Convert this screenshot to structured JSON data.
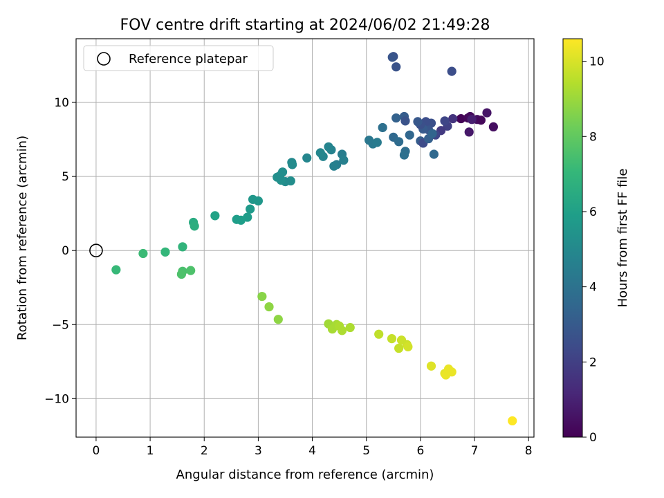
{
  "chart_data": {
    "type": "scatter",
    "title": "FOV centre drift starting at 2024/06/02 21:49:28",
    "xlabel": "Angular distance from reference (arcmin)",
    "ylabel": "Rotation from reference (arcmin)",
    "xlim": [
      -0.37,
      8.1
    ],
    "ylim": [
      -12.6,
      14.3
    ],
    "x_ticks": [
      0,
      1,
      2,
      3,
      4,
      5,
      6,
      7,
      8
    ],
    "y_ticks": [
      -10,
      -5,
      0,
      5,
      10
    ],
    "x_tick_labels": [
      "0",
      "1",
      "2",
      "3",
      "4",
      "5",
      "6",
      "7",
      "8"
    ],
    "y_tick_labels": [
      "−10",
      "−5",
      "0",
      "5",
      "10"
    ],
    "grid": true,
    "legend": {
      "position": "top-left",
      "entries": [
        "Reference platepar"
      ]
    },
    "reference_point": {
      "x": 0,
      "y": 0
    },
    "colorbar": {
      "label": "Hours from first FF file",
      "colormap": "viridis",
      "range": [
        0,
        10.6
      ],
      "ticks": [
        0,
        2,
        4,
        6,
        8,
        10
      ],
      "tick_labels": [
        "0",
        "2",
        "4",
        "6",
        "8",
        "10"
      ]
    },
    "series": [
      {
        "points": [
          {
            "x": 6.75,
            "y": 8.9,
            "c": 0.1
          },
          {
            "x": 6.88,
            "y": 8.95,
            "c": 0.2
          },
          {
            "x": 6.92,
            "y": 9.05,
            "c": 0.3
          },
          {
            "x": 7.05,
            "y": 8.85,
            "c": 0.4
          },
          {
            "x": 7.12,
            "y": 8.8,
            "c": 0.2
          },
          {
            "x": 7.23,
            "y": 9.3,
            "c": 0.6
          },
          {
            "x": 7.35,
            "y": 8.35,
            "c": 0.4
          },
          {
            "x": 6.9,
            "y": 8.0,
            "c": 0.7
          },
          {
            "x": 6.95,
            "y": 8.85,
            "c": 0.9
          },
          {
            "x": 6.6,
            "y": 8.9,
            "c": 1.6
          },
          {
            "x": 6.5,
            "y": 8.4,
            "c": 2.0
          },
          {
            "x": 6.45,
            "y": 8.75,
            "c": 2.2
          },
          {
            "x": 6.38,
            "y": 8.1,
            "c": 1.8
          },
          {
            "x": 6.28,
            "y": 7.8,
            "c": 2.2
          },
          {
            "x": 6.2,
            "y": 8.6,
            "c": 2.6
          },
          {
            "x": 6.15,
            "y": 8.15,
            "c": 2.8
          },
          {
            "x": 6.1,
            "y": 8.7,
            "c": 2.5
          },
          {
            "x": 6.05,
            "y": 8.2,
            "c": 3.0
          },
          {
            "x": 6.0,
            "y": 8.5,
            "c": 2.6
          },
          {
            "x": 5.95,
            "y": 8.7,
            "c": 2.9
          },
          {
            "x": 6.0,
            "y": 7.4,
            "c": 3.1
          },
          {
            "x": 6.05,
            "y": 7.25,
            "c": 2.4
          },
          {
            "x": 6.15,
            "y": 7.55,
            "c": 3.2
          },
          {
            "x": 6.22,
            "y": 7.9,
            "c": 3.4
          },
          {
            "x": 6.25,
            "y": 6.5,
            "c": 3.6
          },
          {
            "x": 5.7,
            "y": 9.05,
            "c": 3.1
          },
          {
            "x": 5.72,
            "y": 8.75,
            "c": 2.7
          },
          {
            "x": 5.55,
            "y": 8.95,
            "c": 3.3
          },
          {
            "x": 5.8,
            "y": 7.8,
            "c": 3.5
          },
          {
            "x": 5.5,
            "y": 7.65,
            "c": 3.6
          },
          {
            "x": 5.6,
            "y": 7.35,
            "c": 3.7
          },
          {
            "x": 5.72,
            "y": 6.7,
            "c": 3.8
          },
          {
            "x": 5.7,
            "y": 6.45,
            "c": 3.9
          },
          {
            "x": 5.3,
            "y": 8.3,
            "c": 3.9
          },
          {
            "x": 5.5,
            "y": 13.1,
            "c": 2.6
          },
          {
            "x": 5.48,
            "y": 13.05,
            "c": 2.8
          },
          {
            "x": 5.55,
            "y": 12.4,
            "c": 2.7
          },
          {
            "x": 6.58,
            "y": 12.1,
            "c": 2.5
          },
          {
            "x": 5.05,
            "y": 7.45,
            "c": 4.2
          },
          {
            "x": 5.12,
            "y": 7.2,
            "c": 4.3
          },
          {
            "x": 5.2,
            "y": 7.3,
            "c": 4.4
          },
          {
            "x": 4.55,
            "y": 6.5,
            "c": 4.5
          },
          {
            "x": 4.58,
            "y": 6.1,
            "c": 4.6
          },
          {
            "x": 4.45,
            "y": 5.8,
            "c": 4.5
          },
          {
            "x": 4.4,
            "y": 5.7,
            "c": 4.6
          },
          {
            "x": 4.35,
            "y": 6.8,
            "c": 4.7
          },
          {
            "x": 4.3,
            "y": 7.0,
            "c": 4.8
          },
          {
            "x": 4.2,
            "y": 6.35,
            "c": 4.8
          },
          {
            "x": 4.15,
            "y": 6.6,
            "c": 4.9
          },
          {
            "x": 3.9,
            "y": 6.25,
            "c": 4.9
          },
          {
            "x": 3.62,
            "y": 5.95,
            "c": 5.0
          },
          {
            "x": 3.63,
            "y": 5.8,
            "c": 5.1
          },
          {
            "x": 3.6,
            "y": 4.7,
            "c": 5.2
          },
          {
            "x": 3.5,
            "y": 4.65,
            "c": 5.1
          },
          {
            "x": 3.45,
            "y": 5.3,
            "c": 5.2
          },
          {
            "x": 3.42,
            "y": 4.75,
            "c": 5.3
          },
          {
            "x": 3.35,
            "y": 4.95,
            "c": 5.3
          },
          {
            "x": 3.4,
            "y": 5.05,
            "c": 5.2
          },
          {
            "x": 3.0,
            "y": 3.35,
            "c": 5.6
          },
          {
            "x": 2.9,
            "y": 3.45,
            "c": 5.6
          },
          {
            "x": 2.85,
            "y": 2.8,
            "c": 5.7
          },
          {
            "x": 2.8,
            "y": 2.25,
            "c": 5.8
          },
          {
            "x": 2.68,
            "y": 2.05,
            "c": 5.9
          },
          {
            "x": 2.6,
            "y": 2.1,
            "c": 5.9
          },
          {
            "x": 2.2,
            "y": 2.35,
            "c": 6.1
          },
          {
            "x": 1.8,
            "y": 1.9,
            "c": 6.5
          },
          {
            "x": 1.82,
            "y": 1.65,
            "c": 6.6
          },
          {
            "x": 1.6,
            "y": 0.25,
            "c": 6.9
          },
          {
            "x": 1.28,
            "y": -0.1,
            "c": 7.0
          },
          {
            "x": 0.87,
            "y": -0.2,
            "c": 7.2
          },
          {
            "x": 0.37,
            "y": -1.3,
            "c": 7.1
          },
          {
            "x": 1.6,
            "y": -1.4,
            "c": 7.5
          },
          {
            "x": 1.58,
            "y": -1.6,
            "c": 7.6
          },
          {
            "x": 1.75,
            "y": -1.35,
            "c": 7.6
          },
          {
            "x": 3.07,
            "y": -3.1,
            "c": 8.7
          },
          {
            "x": 3.2,
            "y": -3.8,
            "c": 8.8
          },
          {
            "x": 3.37,
            "y": -4.65,
            "c": 8.8
          },
          {
            "x": 4.3,
            "y": -4.95,
            "c": 9.1
          },
          {
            "x": 4.37,
            "y": -5.3,
            "c": 9.2
          },
          {
            "x": 4.45,
            "y": -5.0,
            "c": 9.2
          },
          {
            "x": 4.5,
            "y": -5.1,
            "c": 9.3
          },
          {
            "x": 4.55,
            "y": -5.4,
            "c": 9.3
          },
          {
            "x": 4.7,
            "y": -5.2,
            "c": 9.3
          },
          {
            "x": 5.23,
            "y": -5.65,
            "c": 9.6
          },
          {
            "x": 5.47,
            "y": -5.95,
            "c": 9.7
          },
          {
            "x": 5.6,
            "y": -6.6,
            "c": 9.7
          },
          {
            "x": 5.65,
            "y": -6.05,
            "c": 9.8
          },
          {
            "x": 5.75,
            "y": -6.35,
            "c": 9.8
          },
          {
            "x": 5.77,
            "y": -6.5,
            "c": 9.9
          },
          {
            "x": 6.2,
            "y": -7.8,
            "c": 10.1
          },
          {
            "x": 6.45,
            "y": -8.3,
            "c": 10.2
          },
          {
            "x": 6.47,
            "y": -8.4,
            "c": 10.3
          },
          {
            "x": 6.52,
            "y": -8.0,
            "c": 10.3
          },
          {
            "x": 6.58,
            "y": -8.2,
            "c": 10.3
          },
          {
            "x": 7.7,
            "y": -11.5,
            "c": 10.6
          }
        ]
      }
    ]
  }
}
